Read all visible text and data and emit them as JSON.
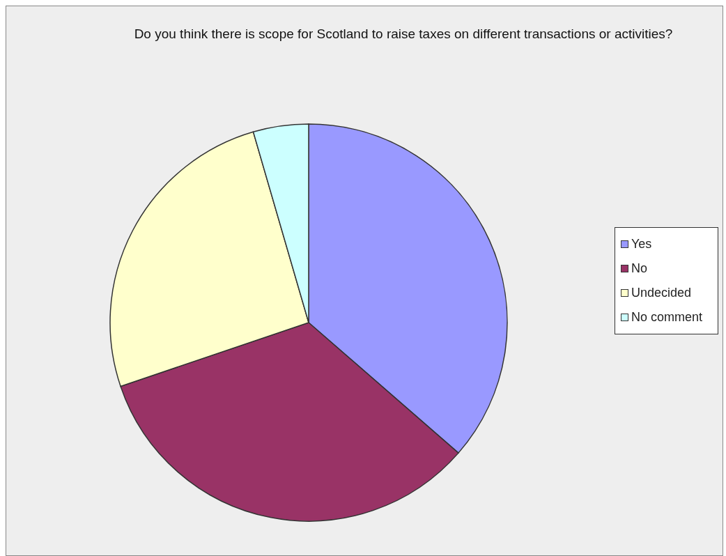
{
  "chart_data": {
    "type": "pie",
    "title": "Do you think there is scope for Scotland to raise taxes on different transactions or activities?",
    "categories": [
      "Yes",
      "No",
      "Undecided",
      "No comment"
    ],
    "values": [
      36.4,
      33.4,
      25.7,
      4.5
    ],
    "colors": [
      "#9999ff",
      "#993366",
      "#ffffcc",
      "#ccffff"
    ],
    "legend": "right"
  }
}
